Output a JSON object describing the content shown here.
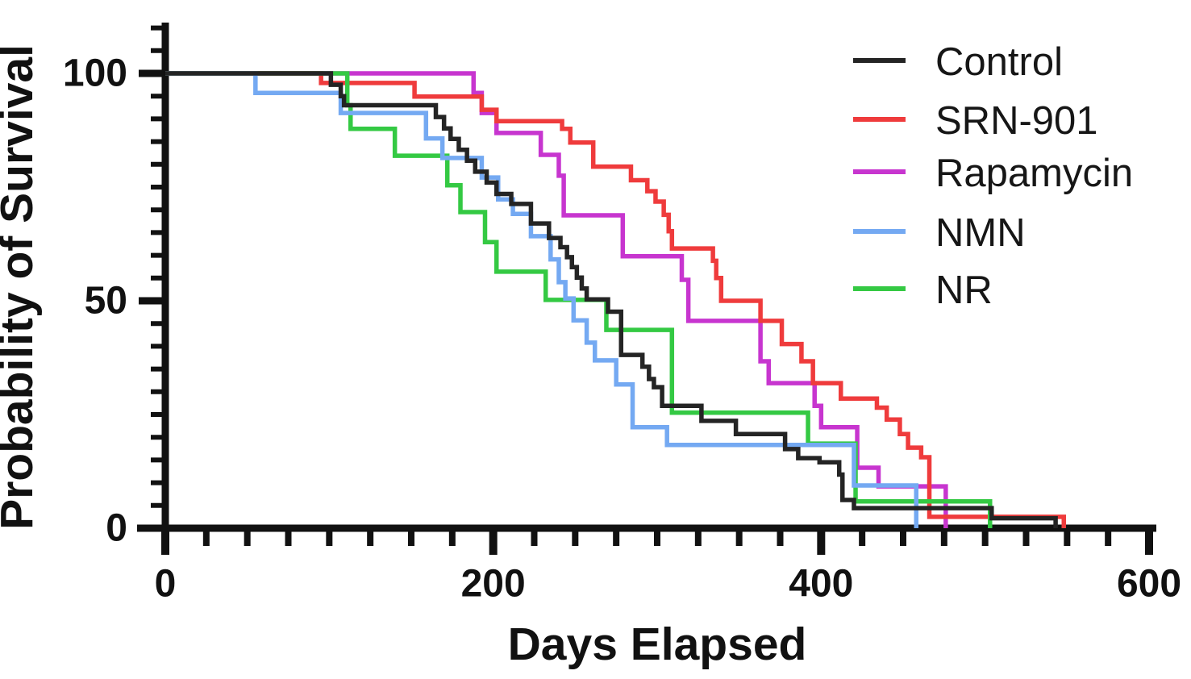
{
  "page": {
    "background": "#ffffff"
  },
  "chart_data": {
    "type": "line",
    "variant": "kaplan_meier_survival_step",
    "title": "",
    "xlabel": "Days Elapsed",
    "ylabel": "Probability of Survival",
    "xlim": [
      0,
      600
    ],
    "ylim": [
      0,
      100
    ],
    "x_major_ticks": [
      0,
      200,
      400,
      600
    ],
    "x_minor_tick_step": 25,
    "y_major_ticks": [
      0,
      50,
      100
    ],
    "y_minor_tick_step": 5,
    "y_minor_tick_max": 110,
    "grid": false,
    "legend_position": "top-right",
    "axis_color": "#111111",
    "series": [
      {
        "name": "Control",
        "color": "#242424",
        "z": 5,
        "points": [
          [
            0,
            100
          ],
          [
            101,
            97.5
          ],
          [
            107,
            95
          ],
          [
            109,
            93
          ],
          [
            165,
            90.4
          ],
          [
            170,
            87.9
          ],
          [
            174,
            85.6
          ],
          [
            179,
            83.2
          ],
          [
            184,
            80.8
          ],
          [
            189,
            78.4
          ],
          [
            196,
            76
          ],
          [
            202,
            73.5
          ],
          [
            211,
            71.3
          ],
          [
            223,
            67
          ],
          [
            234,
            63.8
          ],
          [
            241,
            61.8
          ],
          [
            245,
            59.6
          ],
          [
            248,
            57.4
          ],
          [
            251,
            55.1
          ],
          [
            254,
            52.7
          ],
          [
            257,
            50.3
          ],
          [
            270,
            47.6
          ],
          [
            278,
            38.1
          ],
          [
            291,
            35.5
          ],
          [
            295,
            32.8
          ],
          [
            298,
            31
          ],
          [
            303,
            26.9
          ],
          [
            327,
            23.6
          ],
          [
            348,
            20.7
          ],
          [
            378,
            17.4
          ],
          [
            386,
            15.4
          ],
          [
            399,
            14.5
          ],
          [
            411,
            11.8
          ],
          [
            413,
            6.2
          ],
          [
            420,
            4.4
          ],
          [
            504,
            2.2
          ],
          [
            543,
            0
          ]
        ]
      },
      {
        "name": "SRN-901",
        "color": "#ef3b3c",
        "z": 2,
        "points": [
          [
            0,
            100
          ],
          [
            95,
            97.9
          ],
          [
            152,
            94.9
          ],
          [
            193,
            92
          ],
          [
            202,
            89.5
          ],
          [
            242,
            87.8
          ],
          [
            247,
            84.8
          ],
          [
            261,
            79.5
          ],
          [
            284,
            76.5
          ],
          [
            294,
            74.1
          ],
          [
            299,
            71.8
          ],
          [
            304,
            68.9
          ],
          [
            307,
            65.3
          ],
          [
            309,
            61.5
          ],
          [
            334,
            58.8
          ],
          [
            336,
            55
          ],
          [
            339,
            50
          ],
          [
            363,
            45.6
          ],
          [
            376,
            40.5
          ],
          [
            388,
            36.7
          ],
          [
            395,
            31.9
          ],
          [
            412,
            28.5
          ],
          [
            434,
            26.5
          ],
          [
            440,
            23.9
          ],
          [
            448,
            20.7
          ],
          [
            453,
            17.7
          ],
          [
            461,
            15.6
          ],
          [
            466,
            2.5
          ],
          [
            548,
            0
          ]
        ]
      },
      {
        "name": "Rapamycin",
        "color": "#c735cf",
        "z": 1,
        "points": [
          [
            0,
            100
          ],
          [
            188,
            95.7
          ],
          [
            193,
            91.3
          ],
          [
            202,
            86.9
          ],
          [
            229,
            82.1
          ],
          [
            240,
            77.5
          ],
          [
            243,
            68.8
          ],
          [
            279,
            59.8
          ],
          [
            315,
            54.6
          ],
          [
            319,
            45.6
          ],
          [
            363,
            36.7
          ],
          [
            368,
            31.9
          ],
          [
            396,
            26.9
          ],
          [
            400,
            22.2
          ],
          [
            422,
            13.3
          ],
          [
            435,
            9.2
          ],
          [
            476,
            0
          ]
        ]
      },
      {
        "name": "NMN",
        "color": "#74a9f2",
        "z": 4,
        "points": [
          [
            0,
            100
          ],
          [
            55,
            95.7
          ],
          [
            107,
            91.3
          ],
          [
            159,
            85.7
          ],
          [
            169,
            81.4
          ],
          [
            193,
            77.1
          ],
          [
            203,
            72.3
          ],
          [
            212,
            69.1
          ],
          [
            223,
            64.2
          ],
          [
            235,
            59.1
          ],
          [
            240,
            54.1
          ],
          [
            244,
            50.5
          ],
          [
            249,
            45.7
          ],
          [
            257,
            40.8
          ],
          [
            262,
            36.9
          ],
          [
            275,
            31.6
          ],
          [
            285,
            22.2
          ],
          [
            306,
            18.3
          ],
          [
            420,
            9.4
          ],
          [
            458,
            0
          ]
        ]
      },
      {
        "name": "NR",
        "color": "#34c943",
        "z": 3,
        "points": [
          [
            0,
            100
          ],
          [
            111,
            93
          ],
          [
            113,
            87.8
          ],
          [
            140,
            81.9
          ],
          [
            172,
            75.4
          ],
          [
            180,
            69.5
          ],
          [
            195,
            62.9
          ],
          [
            202,
            56.4
          ],
          [
            232,
            50.2
          ],
          [
            269,
            43.6
          ],
          [
            309,
            25.4
          ],
          [
            392,
            18.6
          ],
          [
            421,
            5.9
          ],
          [
            503,
            0
          ]
        ]
      }
    ]
  }
}
